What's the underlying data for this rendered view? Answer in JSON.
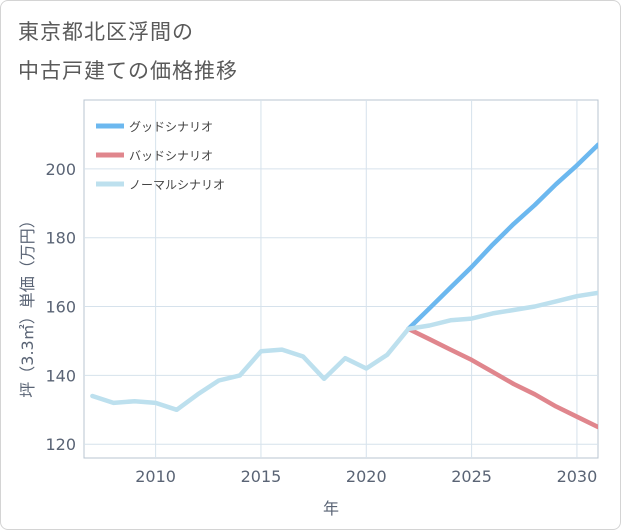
{
  "title_line1": "東京都北区浮間の",
  "title_line2": "中古戸建ての価格推移",
  "chart_data": {
    "type": "line",
    "xlabel": "年",
    "ylabel": "坪（3.3㎡）単価（万円）",
    "xlim": [
      2006.6,
      2031
    ],
    "ylim": [
      116,
      220
    ],
    "x_ticks": [
      2010,
      2015,
      2020,
      2025,
      2030
    ],
    "y_ticks": [
      120,
      140,
      160,
      180,
      200
    ],
    "x_tick_labels": [
      "2010",
      "2015",
      "2020",
      "2025",
      "2030"
    ],
    "y_tick_labels": [
      "120",
      "140",
      "160",
      "180",
      "200"
    ],
    "grid": true,
    "legend_position": "top-left",
    "series": [
      {
        "name": "グッドシナリオ",
        "color": "#6cb8ef",
        "x": [
          2022,
          2023,
          2024,
          2025,
          2026,
          2027,
          2028,
          2029,
          2030,
          2031
        ],
        "y": [
          153.5,
          159.5,
          165.5,
          171.5,
          178,
          184,
          189.5,
          195.5,
          201,
          207
        ]
      },
      {
        "name": "バッドシナリオ",
        "color": "#e0868d",
        "x": [
          2022,
          2023,
          2024,
          2025,
          2026,
          2027,
          2028,
          2029,
          2030,
          2031
        ],
        "y": [
          153.5,
          150.5,
          147.5,
          144.5,
          141,
          137.5,
          134.5,
          131,
          128,
          125
        ]
      },
      {
        "name": "ノーマルシナリオ",
        "color": "#bde0ee",
        "x": [
          2007,
          2008,
          2009,
          2010,
          2011,
          2012,
          2013,
          2014,
          2015,
          2016,
          2017,
          2018,
          2019,
          2020,
          2021,
          2022,
          2023,
          2024,
          2025,
          2026,
          2027,
          2028,
          2029,
          2030,
          2031
        ],
        "y": [
          134,
          132,
          132.5,
          132,
          130,
          134.5,
          138.5,
          140,
          147,
          147.5,
          145.5,
          139,
          145,
          142,
          146,
          153.5,
          154.5,
          156,
          156.5,
          158,
          159,
          160,
          161.5,
          163,
          164
        ]
      }
    ]
  }
}
